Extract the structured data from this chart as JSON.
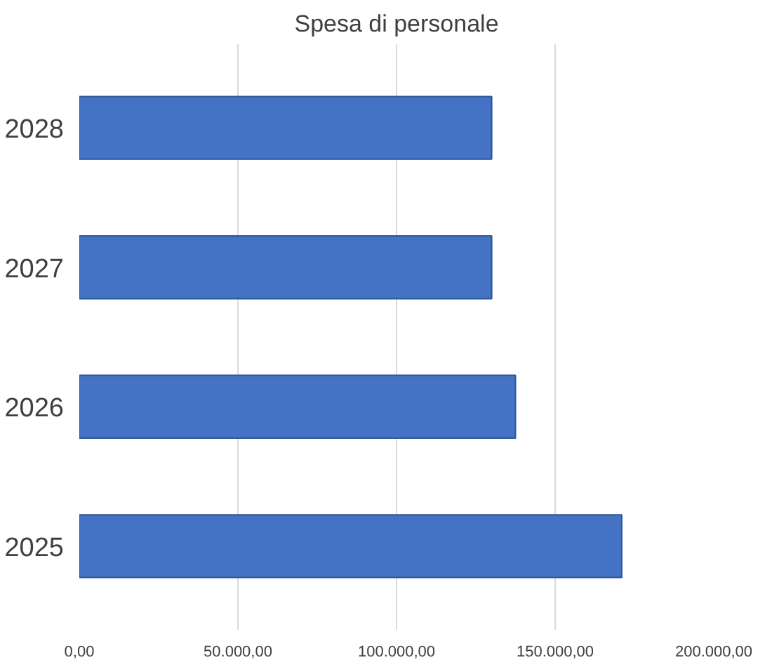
{
  "chart_data": {
    "type": "bar",
    "orientation": "horizontal",
    "title": "Spesa di personale",
    "categories": [
      "2028",
      "2027",
      "2026",
      "2025"
    ],
    "values": [
      130000,
      130000,
      137500,
      171000
    ],
    "color": "#4472c4",
    "xlim": [
      0,
      200000
    ],
    "xticks": [
      {
        "value": 0,
        "label": "0,00"
      },
      {
        "value": 50000,
        "label": "50.000,00"
      },
      {
        "value": 100000,
        "label": "100.000,00"
      },
      {
        "value": 150000,
        "label": "150.000,00"
      },
      {
        "value": 200000,
        "label": "200.000,00"
      }
    ],
    "grid": "x"
  }
}
